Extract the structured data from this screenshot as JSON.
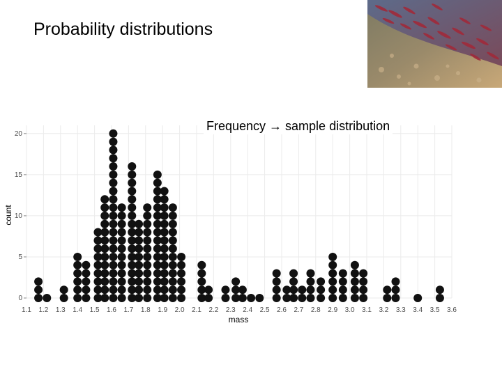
{
  "slide": {
    "title": "Probability distributions",
    "caption": "Frequency → sample distribution"
  },
  "photo": {
    "icon": "salmon-run-photo"
  },
  "chart_data": {
    "type": "dotplot",
    "xlabel": "mass",
    "ylabel": "count",
    "xlim": [
      1.1,
      3.6
    ],
    "ylim": [
      0,
      21
    ],
    "x_ticks": [
      "1.1",
      "1.2",
      "1.3",
      "1.4",
      "1.5",
      "1.6",
      "1.7",
      "1.8",
      "1.9",
      "2.0",
      "2.1",
      "2.2",
      "2.3",
      "2.4",
      "2.5",
      "2.6",
      "2.7",
      "2.8",
      "2.9",
      "3.0",
      "3.1",
      "3.2",
      "3.3",
      "3.4",
      "3.5",
      "3.6"
    ],
    "y_ticks": [
      "0",
      "5",
      "10",
      "15",
      "20"
    ],
    "grid": true,
    "dot_color": "#111111",
    "stacks": [
      {
        "x": 1.17,
        "count": 3
      },
      {
        "x": 1.22,
        "count": 1
      },
      {
        "x": 1.32,
        "count": 2
      },
      {
        "x": 1.4,
        "count": 6
      },
      {
        "x": 1.45,
        "count": 5
      },
      {
        "x": 1.52,
        "count": 9
      },
      {
        "x": 1.56,
        "count": 13
      },
      {
        "x": 1.61,
        "count": 21
      },
      {
        "x": 1.66,
        "count": 12
      },
      {
        "x": 1.72,
        "count": 17
      },
      {
        "x": 1.76,
        "count": 10
      },
      {
        "x": 1.81,
        "count": 12
      },
      {
        "x": 1.87,
        "count": 16
      },
      {
        "x": 1.91,
        "count": 14
      },
      {
        "x": 1.96,
        "count": 12
      },
      {
        "x": 2.01,
        "count": 6
      },
      {
        "x": 2.13,
        "count": 5
      },
      {
        "x": 2.17,
        "count": 2
      },
      {
        "x": 2.27,
        "count": 2
      },
      {
        "x": 2.33,
        "count": 3
      },
      {
        "x": 2.37,
        "count": 2
      },
      {
        "x": 2.42,
        "count": 1
      },
      {
        "x": 2.47,
        "count": 1
      },
      {
        "x": 2.57,
        "count": 4
      },
      {
        "x": 2.63,
        "count": 2
      },
      {
        "x": 2.67,
        "count": 4
      },
      {
        "x": 2.72,
        "count": 2
      },
      {
        "x": 2.77,
        "count": 4
      },
      {
        "x": 2.83,
        "count": 3
      },
      {
        "x": 2.9,
        "count": 6
      },
      {
        "x": 2.96,
        "count": 4
      },
      {
        "x": 3.03,
        "count": 5
      },
      {
        "x": 3.08,
        "count": 4
      },
      {
        "x": 3.22,
        "count": 2
      },
      {
        "x": 3.27,
        "count": 3
      },
      {
        "x": 3.4,
        "count": 1
      },
      {
        "x": 3.53,
        "count": 2
      }
    ]
  }
}
